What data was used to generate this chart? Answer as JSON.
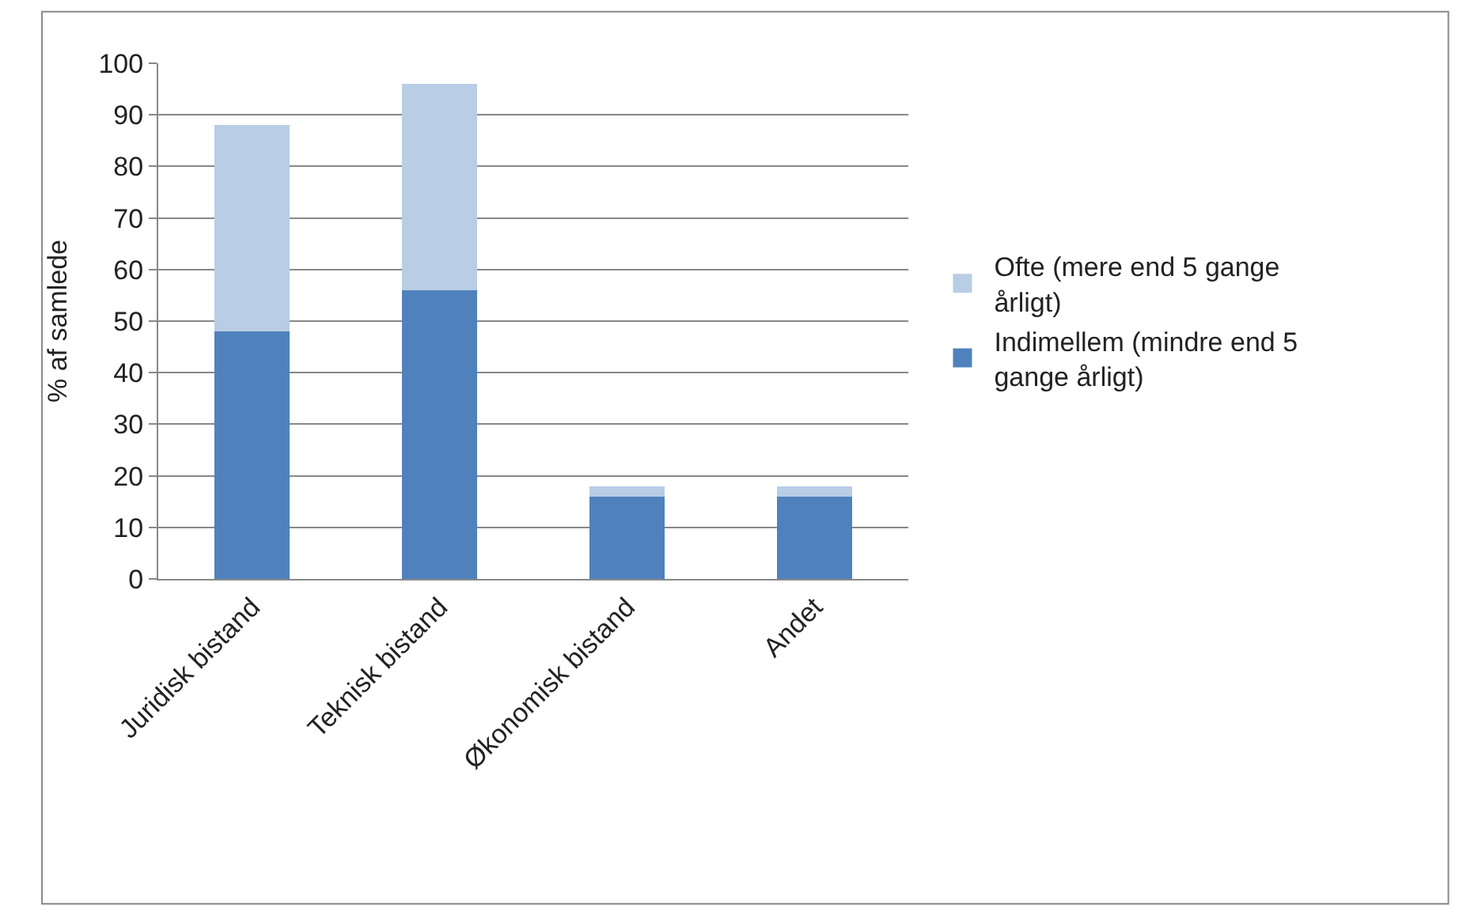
{
  "chart_data": {
    "type": "bar",
    "stacked": true,
    "ylabel": "% af samlede",
    "categories": [
      "Juridisk bistand",
      "Teknisk bistand",
      "Økonomisk bistand",
      "Andet"
    ],
    "series": [
      {
        "name": "Indimellem (mindre end 5 gange årligt)",
        "color": "#4f81bd",
        "values": [
          48,
          56,
          16,
          16
        ]
      },
      {
        "name": "Ofte (mere end 5 gange årligt)",
        "color": "#b9cde5",
        "values": [
          40,
          40,
          2,
          2
        ]
      }
    ],
    "ylim": [
      0,
      100
    ],
    "yticks": [
      0,
      10,
      20,
      30,
      40,
      50,
      60,
      70,
      80,
      90,
      100
    ],
    "grid": "y",
    "legend": "right"
  }
}
